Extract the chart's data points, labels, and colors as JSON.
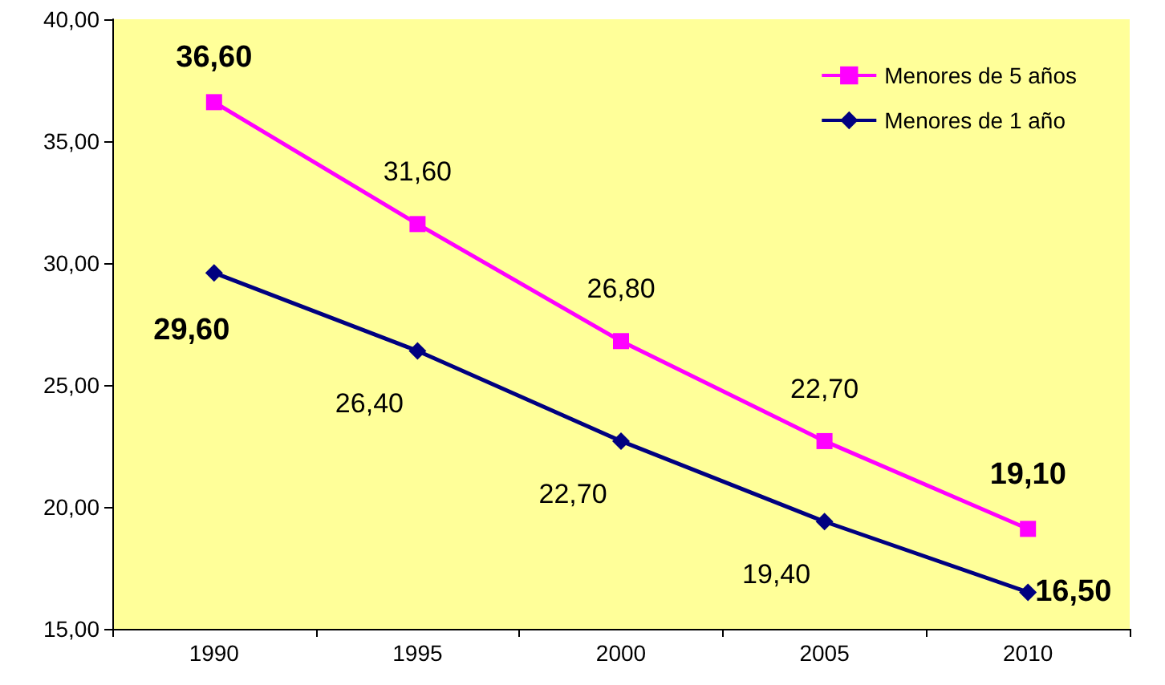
{
  "chart_data": {
    "type": "line",
    "categories": [
      "1990",
      "1995",
      "2000",
      "2005",
      "2010"
    ],
    "series": [
      {
        "name": "Menores de 5 años",
        "color": "#ff00ff",
        "marker": "square",
        "values": [
          36.6,
          31.6,
          26.8,
          22.7,
          19.1
        ],
        "value_labels": [
          "36,60",
          "31,60",
          "26,80",
          "22,70",
          "19,10"
        ]
      },
      {
        "name": "Menores de 1 año",
        "color": "#000080",
        "marker": "diamond",
        "values": [
          29.6,
          26.4,
          22.7,
          19.4,
          16.5
        ],
        "value_labels": [
          "29,60",
          "26,40",
          "22,70",
          "19,40",
          "16,50"
        ]
      }
    ],
    "ylim": [
      15,
      40
    ],
    "yticks": [
      {
        "value": 15,
        "label": "15,00"
      },
      {
        "value": 20,
        "label": "20,00"
      },
      {
        "value": 25,
        "label": "25,00"
      },
      {
        "value": 30,
        "label": "30,00"
      },
      {
        "value": 35,
        "label": "35,00"
      },
      {
        "value": 40,
        "label": "40,00"
      }
    ],
    "legend": "top right",
    "grid": false,
    "line_style": "solid"
  }
}
